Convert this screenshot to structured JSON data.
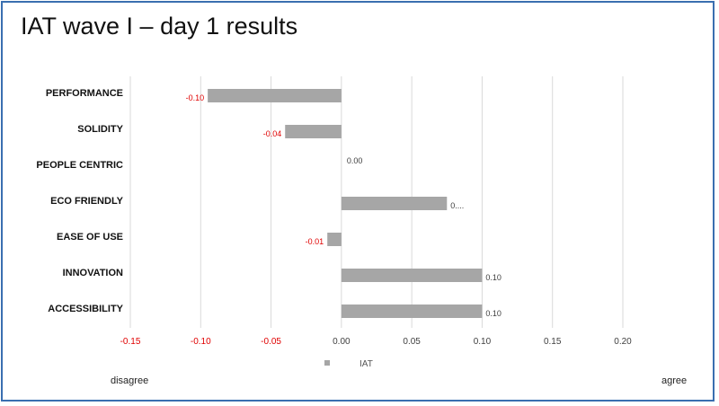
{
  "page": {
    "title": "IAT wave I – day 1 results"
  },
  "chart_data": {
    "type": "bar",
    "orientation": "horizontal",
    "title": "IAT wave I – day 1 results",
    "categories": [
      "PERFORMANCE",
      "SOLIDITY",
      "PEOPLE CENTRIC",
      "ECO FRIENDLY",
      "EASE OF USE",
      "INNOVATION",
      "ACCESSIBILITY"
    ],
    "series": [
      {
        "name": "IAT",
        "values": [
          -0.095,
          -0.04,
          0.0,
          0.075,
          -0.01,
          0.1,
          0.1
        ],
        "data_labels": [
          "-0.10",
          "-0.04",
          "0.00",
          "0....",
          "-0.01",
          "0.10",
          "0.10"
        ]
      }
    ],
    "xlim": [
      -0.15,
      0.2
    ],
    "xticks": [
      -0.15,
      -0.1,
      -0.05,
      0.0,
      0.05,
      0.1,
      0.15,
      0.2
    ],
    "xtick_labels": [
      "-0.15",
      "-0.10",
      "-0.05",
      "0.00",
      "0.05",
      "0.10",
      "0.15",
      "0.20"
    ],
    "grid": true,
    "legend": "bottom",
    "colors": {
      "bar": "#a6a6a6",
      "negative_label": "#e00000",
      "positive_label": "#404040",
      "grid": "#d9d9d9",
      "border": "#3a6fb0"
    }
  },
  "footer": {
    "left_label": "disagree",
    "right_label": "agree"
  }
}
